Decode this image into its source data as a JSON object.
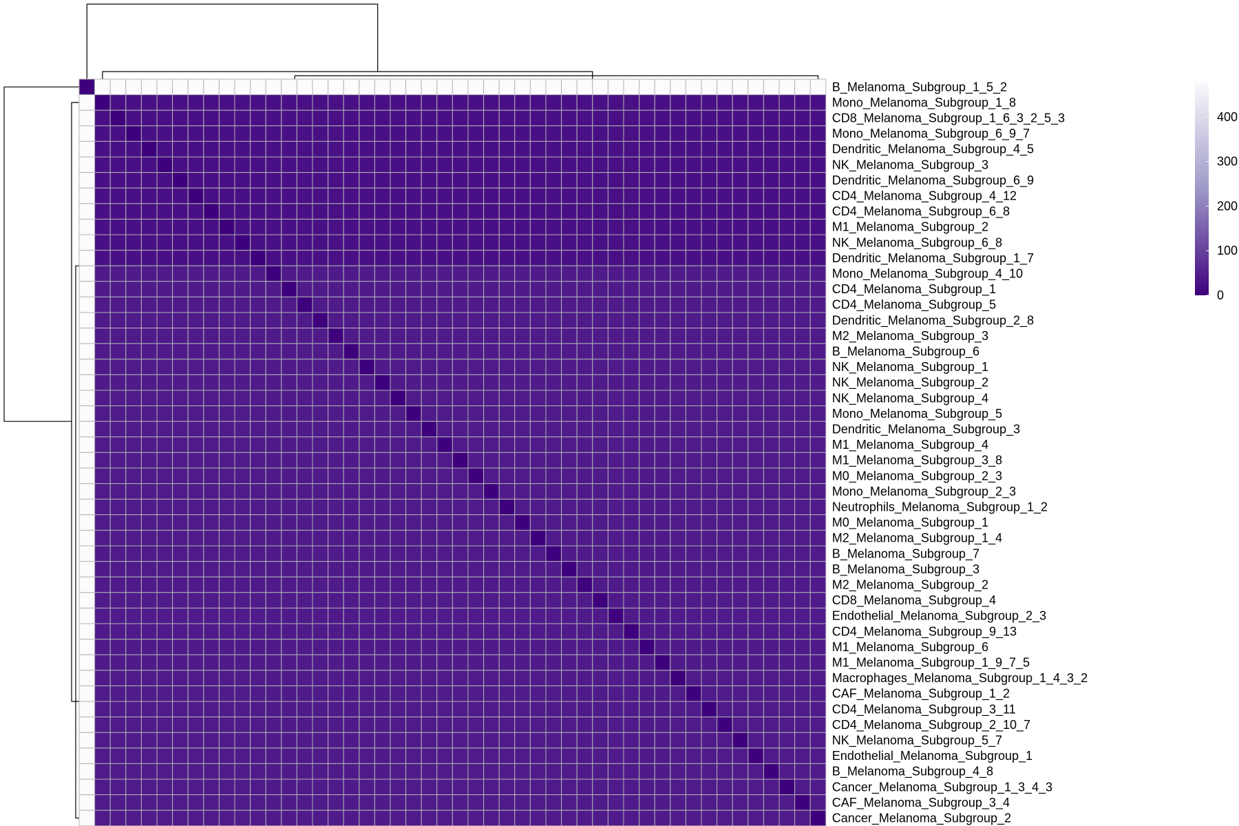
{
  "chart_data": {
    "type": "heatmap",
    "title": "",
    "xlabel": "",
    "ylabel": "",
    "row_labels": [
      "B_Melanoma_Subgroup_1_5_2",
      "Mono_Melanoma_Subgroup_1_8",
      "CD8_Melanoma_Subgroup_1_6_3_2_5_3",
      "Mono_Melanoma_Subgroup_6_9_7",
      "Dendritic_Melanoma_Subgroup_4_5",
      "NK_Melanoma_Subgroup_3",
      "Dendritic_Melanoma_Subgroup_6_9",
      "CD4_Melanoma_Subgroup_4_12",
      "CD4_Melanoma_Subgroup_6_8",
      "M1_Melanoma_Subgroup_2",
      "NK_Melanoma_Subgroup_6_8",
      "Dendritic_Melanoma_Subgroup_1_7",
      "Mono_Melanoma_Subgroup_4_10",
      "CD4_Melanoma_Subgroup_1",
      "CD4_Melanoma_Subgroup_5",
      "Dendritic_Melanoma_Subgroup_2_8",
      "M2_Melanoma_Subgroup_3",
      "B_Melanoma_Subgroup_6",
      "NK_Melanoma_Subgroup_1",
      "NK_Melanoma_Subgroup_2",
      "NK_Melanoma_Subgroup_4",
      "Mono_Melanoma_Subgroup_5",
      "Dendritic_Melanoma_Subgroup_3",
      "M1_Melanoma_Subgroup_4",
      "M1_Melanoma_Subgroup_3_8",
      "M0_Melanoma_Subgroup_2_3",
      "Mono_Melanoma_Subgroup_2_3",
      "Neutrophils_Melanoma_Subgroup_1_2",
      "M0_Melanoma_Subgroup_1",
      "M2_Melanoma_Subgroup_1_4",
      "B_Melanoma_Subgroup_7",
      "B_Melanoma_Subgroup_3",
      "M2_Melanoma_Subgroup_2",
      "CD8_Melanoma_Subgroup_4",
      "Endothelial_Melanoma_Subgroup_2_3",
      "CD4_Melanoma_Subgroup_9_13",
      "M1_Melanoma_Subgroup_6",
      "M1_Melanoma_Subgroup_1_9_7_5",
      "Macrophages_Melanoma_Subgroup_1_4_3_2",
      "CAF_Melanoma_Subgroup_1_2",
      "CD4_Melanoma_Subgroup_3_11",
      "CD4_Melanoma_Subgroup_2_10_7",
      "NK_Melanoma_Subgroup_5_7",
      "Endothelial_Melanoma_Subgroup_1",
      "B_Melanoma_Subgroup_4_8",
      "Cancer_Melanoma_Subgroup_1_3_4_3",
      "CAF_Melanoma_Subgroup_3_4",
      "Cancer_Melanoma_Subgroup_2"
    ],
    "column_count": 48,
    "values_description_note": "",
    "value_rule": {
      "diagonal": 0,
      "first_row_off_diagonal": 480,
      "first_column_off_diagonal": 480,
      "rows_1_to_11_off_diagonal": 25,
      "rows_12_to_47_off_diagonal": 40
    },
    "color_scale": {
      "min": 0,
      "max": 480,
      "low_color": "#3f007d",
      "mid_color": "#9e9ac8",
      "high_color": "#fcfbfd",
      "ticks": [
        0,
        100,
        200,
        300,
        400
      ]
    },
    "grid": true,
    "legend_position": "right",
    "row_dendrogram": true,
    "column_dendrogram": true
  }
}
